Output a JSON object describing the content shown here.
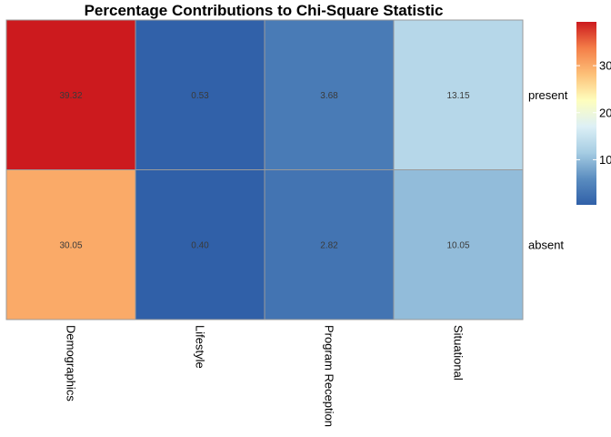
{
  "chart_data": {
    "type": "heatmap",
    "title": "Percentage Contributions to Chi-Square Statistic",
    "columns": [
      "Demographics",
      "Lifestyle",
      "Program Reception",
      "Situational"
    ],
    "rows": [
      "present",
      "absent"
    ],
    "values": [
      [
        39.32,
        0.53,
        3.68,
        13.15
      ],
      [
        30.05,
        0.4,
        2.82,
        10.05
      ]
    ],
    "value_labels": [
      [
        "39.32",
        "0.53",
        "3.68",
        "13.15"
      ],
      [
        "30.05",
        "0.40",
        "2.82",
        "10.05"
      ]
    ],
    "color_scale": {
      "min": 0.4,
      "max": 39.32,
      "stops": [
        "#3060a8",
        "#5b8dc0",
        "#a6cde3",
        "#ddf0f6",
        "#fefebd",
        "#fdc078",
        "#f47e48",
        "#cc1a1e"
      ]
    },
    "legend": {
      "position": "right",
      "ticks": [
        10,
        20,
        30
      ],
      "tick_labels": [
        "10",
        "20",
        "30"
      ]
    },
    "grid": false
  }
}
